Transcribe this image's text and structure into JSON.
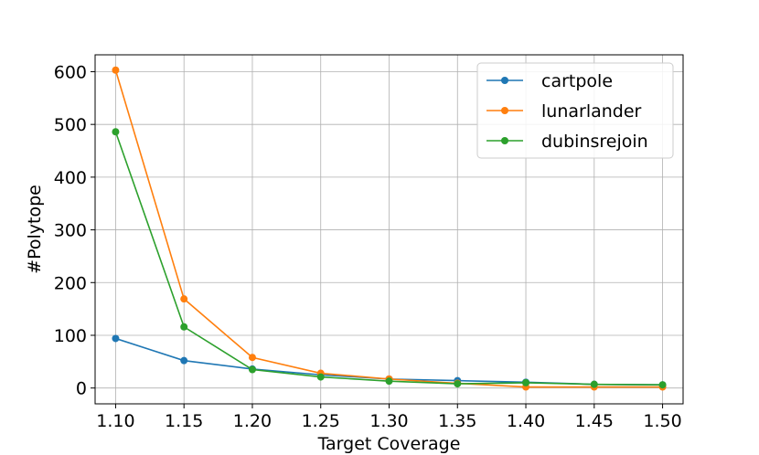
{
  "chart_data": {
    "type": "line",
    "title": "",
    "xlabel": "Target Coverage",
    "ylabel": "#Polytope",
    "x": [
      1.1,
      1.15,
      1.2,
      1.25,
      1.3,
      1.35,
      1.4,
      1.45,
      1.5
    ],
    "x_tick_labels": [
      "1.10",
      "1.15",
      "1.20",
      "1.25",
      "1.30",
      "1.35",
      "1.40",
      "1.45",
      "1.50"
    ],
    "xlim": [
      1.085,
      1.515
    ],
    "y_ticks": [
      0,
      100,
      200,
      300,
      400,
      500,
      600
    ],
    "y_tick_labels": [
      "0",
      "100",
      "200",
      "300",
      "400",
      "500",
      "600"
    ],
    "ylim": [
      -30,
      632
    ],
    "grid": true,
    "legend_position": "top-right",
    "series": [
      {
        "name": "cartpole",
        "color": "#1f77b4",
        "values": [
          94,
          52,
          36,
          25,
          17,
          14,
          11,
          7,
          6
        ]
      },
      {
        "name": "lunarlander",
        "color": "#ff7f0e",
        "values": [
          603,
          169,
          58,
          28,
          17,
          9,
          2,
          2,
          2
        ]
      },
      {
        "name": "dubinsrejoin",
        "color": "#2ca02c",
        "values": [
          486,
          116,
          35,
          21,
          13,
          8,
          10,
          7,
          6
        ]
      }
    ]
  }
}
